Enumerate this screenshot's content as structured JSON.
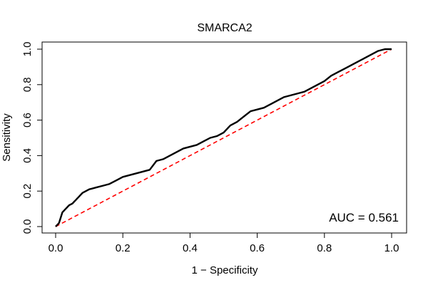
{
  "chart_data": {
    "type": "line",
    "title": "SMARCA2",
    "xlabel": "1 − Specificity",
    "ylabel": "Sensitivity",
    "xlim": [
      0,
      1
    ],
    "ylim": [
      0,
      1
    ],
    "x_ticks": [
      "0.0",
      "0.2",
      "0.4",
      "0.6",
      "0.8",
      "1.0"
    ],
    "y_ticks": [
      "0.0",
      "0.2",
      "0.4",
      "0.6",
      "0.8",
      "1.0"
    ],
    "grid": false,
    "annotation": "AUC = 0.561",
    "series": [
      {
        "color": "#000000",
        "style": "solid",
        "x": [
          0.0,
          0.01,
          0.02,
          0.03,
          0.04,
          0.05,
          0.06,
          0.07,
          0.08,
          0.09,
          0.1,
          0.12,
          0.14,
          0.16,
          0.18,
          0.2,
          0.22,
          0.24,
          0.26,
          0.28,
          0.3,
          0.32,
          0.34,
          0.36,
          0.38,
          0.4,
          0.42,
          0.44,
          0.46,
          0.48,
          0.5,
          0.52,
          0.54,
          0.56,
          0.58,
          0.6,
          0.62,
          0.64,
          0.66,
          0.68,
          0.7,
          0.72,
          0.74,
          0.76,
          0.78,
          0.8,
          0.82,
          0.84,
          0.86,
          0.88,
          0.9,
          0.92,
          0.94,
          0.96,
          0.98,
          1.0
        ],
        "y": [
          0.0,
          0.02,
          0.08,
          0.1,
          0.12,
          0.13,
          0.15,
          0.17,
          0.19,
          0.2,
          0.21,
          0.22,
          0.23,
          0.24,
          0.26,
          0.28,
          0.29,
          0.3,
          0.31,
          0.32,
          0.37,
          0.38,
          0.4,
          0.42,
          0.44,
          0.45,
          0.46,
          0.48,
          0.5,
          0.51,
          0.53,
          0.57,
          0.59,
          0.62,
          0.65,
          0.66,
          0.67,
          0.69,
          0.71,
          0.73,
          0.74,
          0.75,
          0.76,
          0.78,
          0.8,
          0.82,
          0.85,
          0.87,
          0.89,
          0.91,
          0.93,
          0.95,
          0.97,
          0.99,
          1.0,
          1.0
        ]
      },
      {
        "color": "#ff0000",
        "style": "dashed",
        "x": [
          0,
          1
        ],
        "y": [
          0,
          1
        ]
      }
    ]
  }
}
